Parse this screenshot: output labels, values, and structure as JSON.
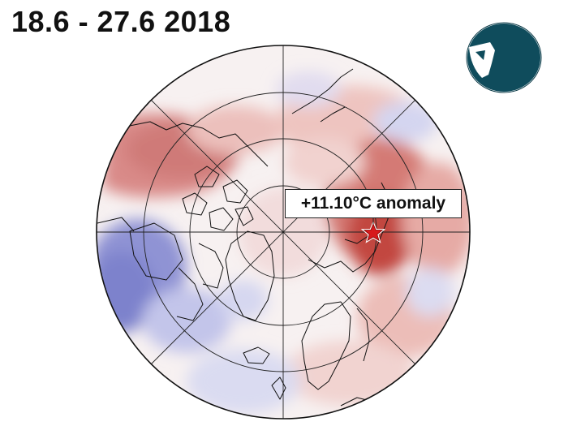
{
  "title": "18.6 - 27.6 2018",
  "annotation": {
    "text": "+11.10°C anomaly",
    "value": 11.1,
    "unit": "°C"
  },
  "colors": {
    "warm_anomaly": "#b2182b",
    "warm_light": "#f4c6c0",
    "cold_anomaly": "#6a6fc4",
    "cold_light": "#d9daf1",
    "neutral": "#f7f1f1",
    "logo": "#0f4c5c",
    "marker": "#d7191c"
  },
  "logo": {
    "icon": "circular-badge-logo-icon"
  },
  "marker": {
    "icon": "star-marker-icon"
  }
}
